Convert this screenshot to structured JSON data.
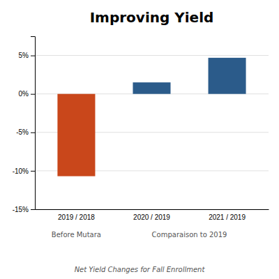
{
  "chart_data": {
    "type": "bar",
    "title": "Improving Yield",
    "categories": [
      "2019 / 2018",
      "2020 / 2019",
      "2021 / 2019"
    ],
    "values": [
      -0.107,
      0.015,
      0.047
    ],
    "colors": [
      "#C9471B",
      "#2B5B8A",
      "#2B5B8A"
    ],
    "ylim": [
      -0.15,
      0.075
    ],
    "yticks": [
      {
        "value": -0.15,
        "label": "-15%"
      },
      {
        "value": -0.1,
        "label": "-10%"
      },
      {
        "value": -0.05,
        "label": "-5%"
      },
      {
        "value": 0.0,
        "label": "0%"
      },
      {
        "value": 0.05,
        "label": "5%"
      }
    ],
    "grid": true,
    "annotations": [
      {
        "text": "Before Mutara",
        "categories": [
          "2019 / 2018"
        ]
      },
      {
        "text": "Comparaison to 2019",
        "categories": [
          "2020 / 2019",
          "2021 / 2019"
        ]
      }
    ],
    "footnote": "Net Yield Changes for Fall Enrollment"
  }
}
